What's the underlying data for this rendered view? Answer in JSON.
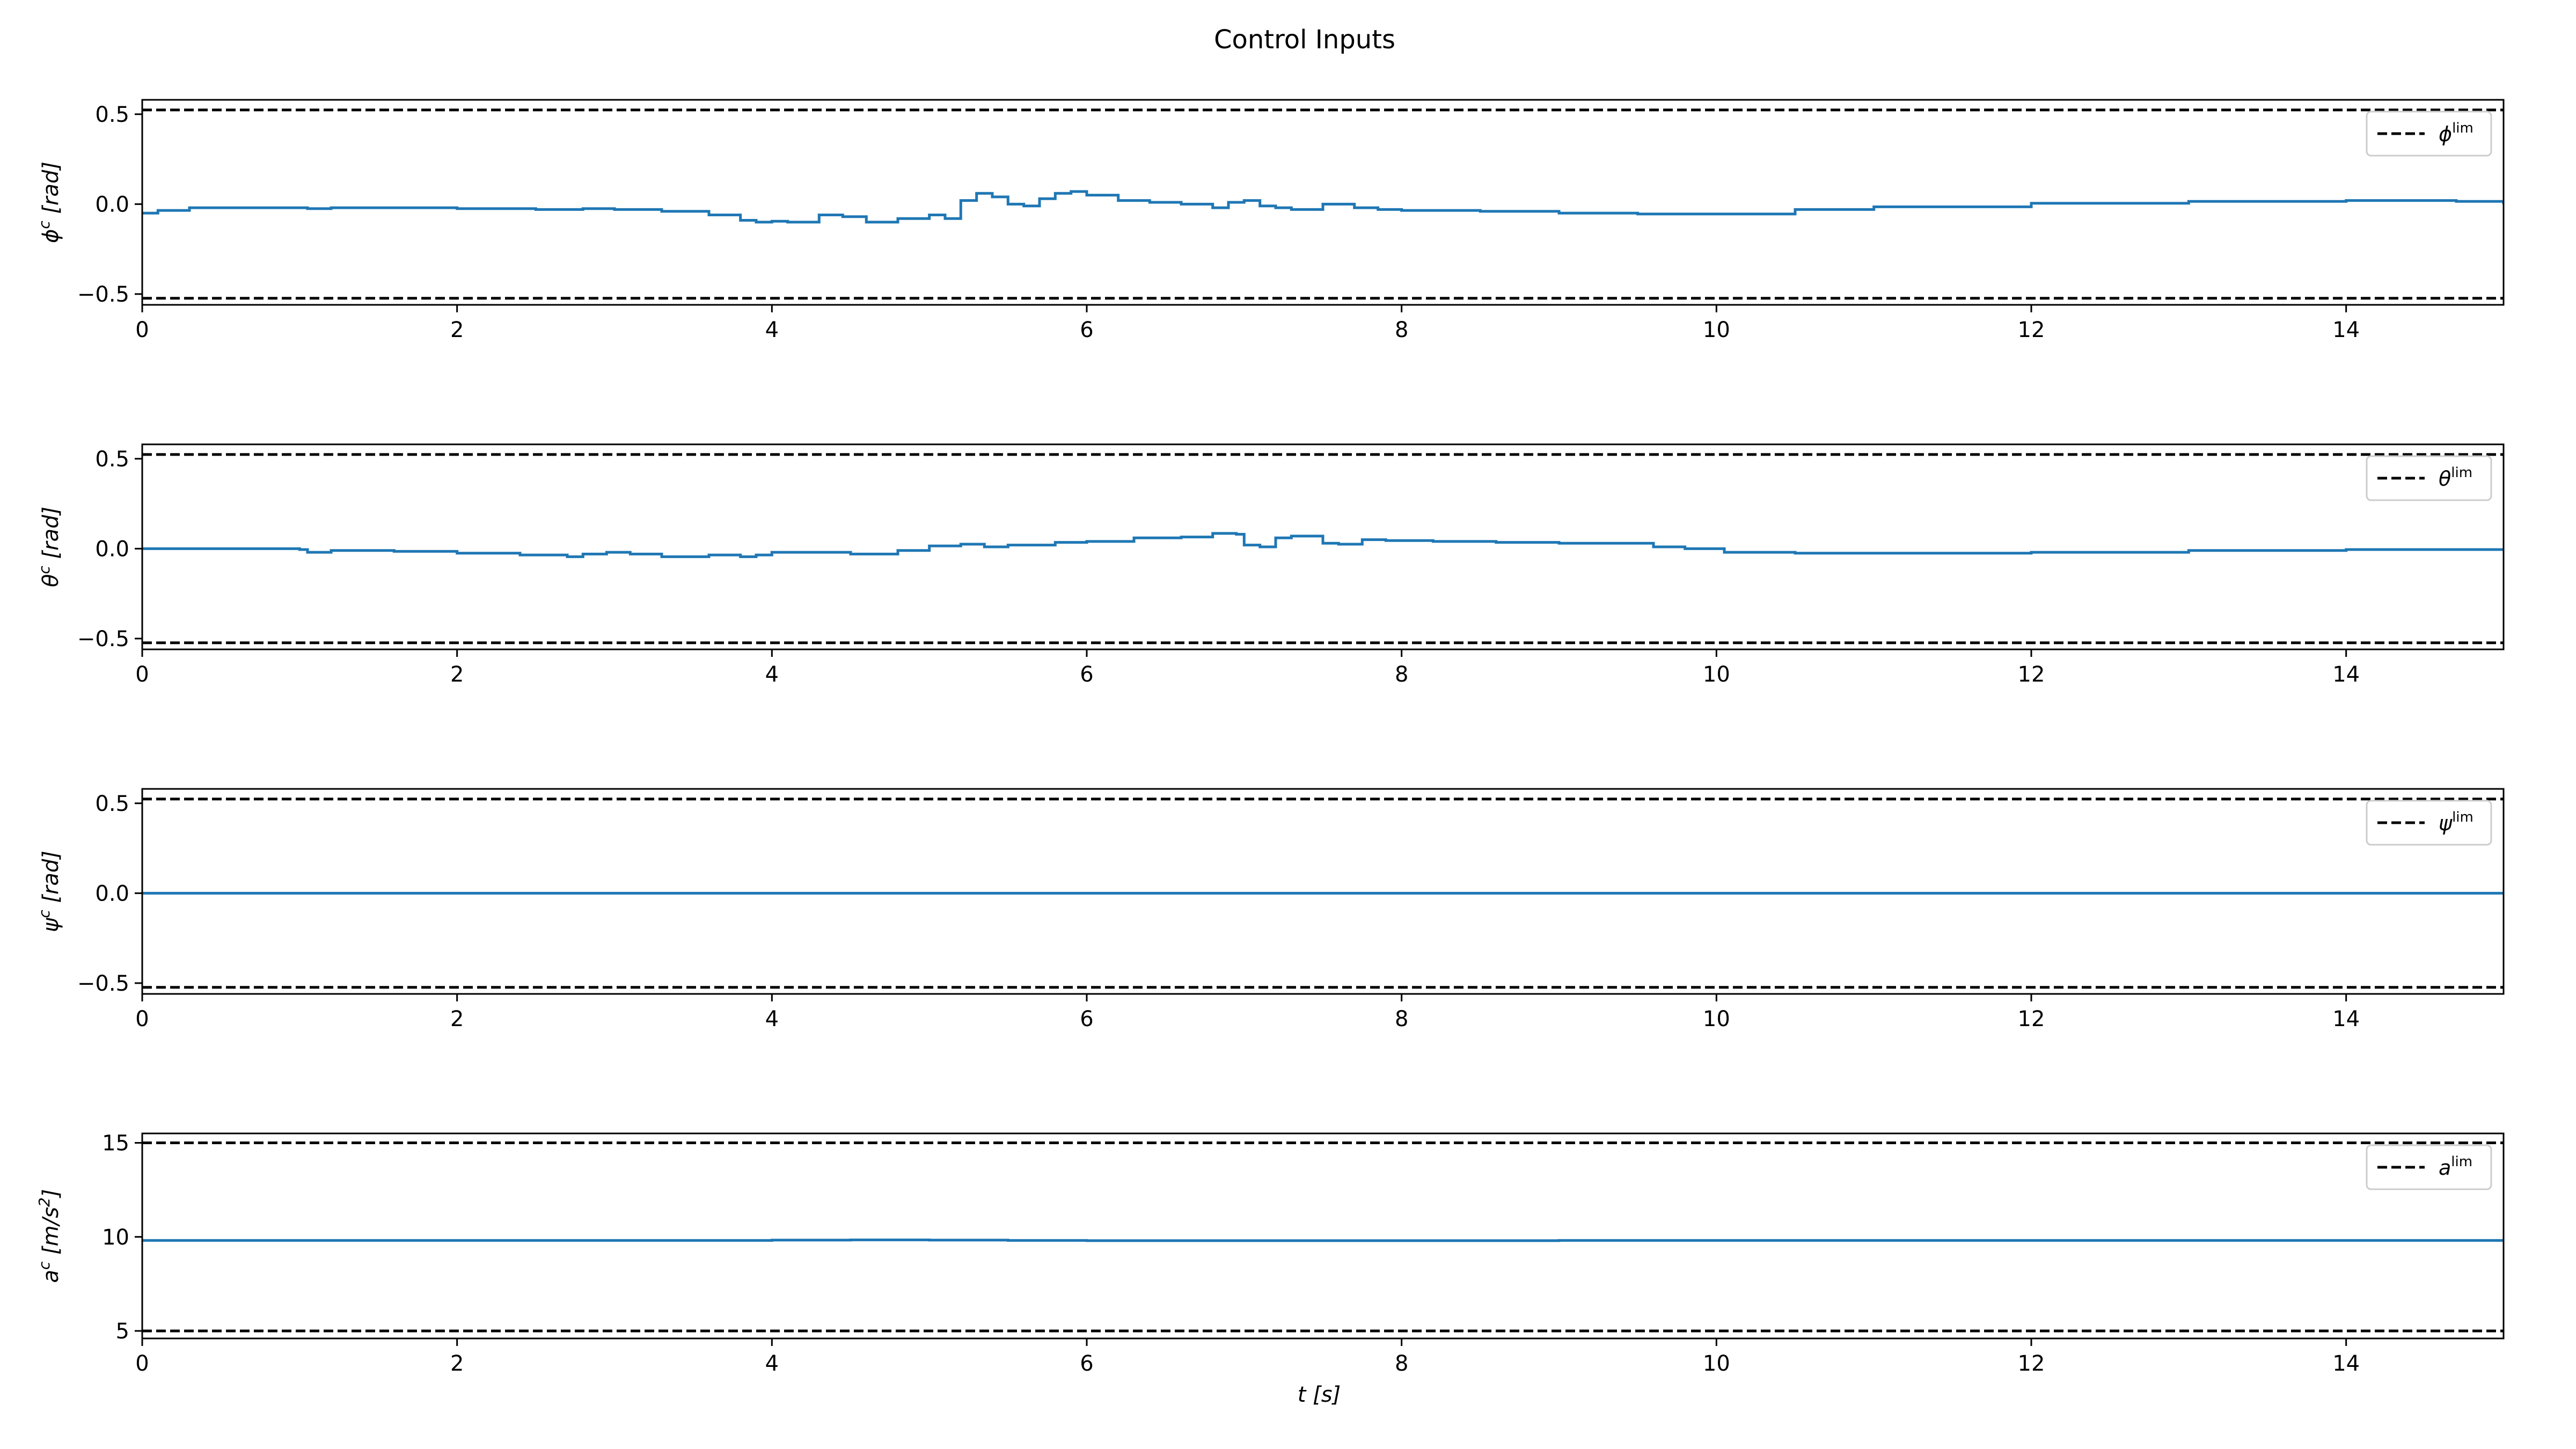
{
  "figure": {
    "title": "Control Inputs",
    "xlabel": "t [s]"
  },
  "chart_data": [
    {
      "type": "line",
      "ylabel": "ϕc [rad]",
      "xlim": [
        0,
        15
      ],
      "ylim": [
        -0.56,
        0.58
      ],
      "xticks": [
        0,
        2,
        4,
        6,
        8,
        10,
        12,
        14
      ],
      "yticks": [
        -0.5,
        0.0,
        0.5
      ],
      "ytick_labels": [
        "−0.5",
        "0.0",
        "0.5"
      ],
      "limits": [
        -0.5236,
        0.5236
      ],
      "legend": "ϕlim",
      "legend_position": "upper right",
      "series": [
        {
          "x": [
            0,
            0.1,
            0.3,
            0.6,
            1.0,
            1.05,
            1.2,
            1.6,
            2.0,
            2.5,
            2.8,
            3.0,
            3.3,
            3.6,
            3.8,
            3.9,
            4.0,
            4.1,
            4.3,
            4.45,
            4.6,
            4.8,
            5.0,
            5.1,
            5.2,
            5.3,
            5.4,
            5.5,
            5.6,
            5.7,
            5.8,
            5.9,
            6.0,
            6.2,
            6.4,
            6.6,
            6.8,
            6.9,
            7.0,
            7.1,
            7.2,
            7.3,
            7.5,
            7.7,
            7.85,
            8.0,
            8.5,
            9.0,
            9.5,
            9.9,
            10.5,
            11.0,
            12.0,
            13.0,
            14.0,
            14.5,
            14.7,
            15.0
          ],
          "y": [
            -0.05,
            -0.035,
            -0.02,
            -0.02,
            -0.02,
            -0.025,
            -0.02,
            -0.02,
            -0.025,
            -0.03,
            -0.025,
            -0.03,
            -0.04,
            -0.06,
            -0.09,
            -0.1,
            -0.095,
            -0.1,
            -0.06,
            -0.07,
            -0.1,
            -0.08,
            -0.06,
            -0.08,
            0.02,
            0.06,
            0.04,
            0.0,
            -0.01,
            0.03,
            0.06,
            0.07,
            0.05,
            0.02,
            0.01,
            0.0,
            -0.02,
            0.01,
            0.02,
            -0.01,
            -0.02,
            -0.03,
            0.0,
            -0.02,
            -0.03,
            -0.035,
            -0.04,
            -0.05,
            -0.055,
            -0.055,
            -0.03,
            -0.015,
            0.005,
            0.015,
            0.02,
            0.02,
            0.015,
            0.0
          ]
        }
      ]
    },
    {
      "type": "line",
      "ylabel": "θc [rad]",
      "xlim": [
        0,
        15
      ],
      "ylim": [
        -0.56,
        0.58
      ],
      "xticks": [
        0,
        2,
        4,
        6,
        8,
        10,
        12,
        14
      ],
      "yticks": [
        -0.5,
        0.0,
        0.5
      ],
      "ytick_labels": [
        "−0.5",
        "0.0",
        "0.5"
      ],
      "limits": [
        -0.5236,
        0.5236
      ],
      "legend": "θlim",
      "legend_position": "upper right",
      "series": [
        {
          "x": [
            0,
            0.5,
            1.0,
            1.05,
            1.2,
            1.6,
            2.0,
            2.4,
            2.7,
            2.8,
            2.95,
            3.1,
            3.3,
            3.6,
            3.8,
            3.9,
            4.0,
            4.2,
            4.5,
            4.8,
            5.0,
            5.2,
            5.35,
            5.5,
            5.8,
            6.0,
            6.3,
            6.6,
            6.8,
            6.95,
            7.0,
            7.1,
            7.2,
            7.3,
            7.5,
            7.6,
            7.75,
            7.9,
            8.2,
            8.6,
            9.0,
            9.6,
            9.8,
            10.05,
            10.5,
            11.0,
            12.0,
            13.0,
            14.0,
            15.0
          ],
          "y": [
            0.0,
            0.0,
            -0.005,
            -0.02,
            -0.01,
            -0.015,
            -0.025,
            -0.035,
            -0.045,
            -0.03,
            -0.02,
            -0.03,
            -0.045,
            -0.035,
            -0.045,
            -0.035,
            -0.02,
            -0.02,
            -0.03,
            -0.01,
            0.015,
            0.025,
            0.01,
            0.02,
            0.035,
            0.04,
            0.06,
            0.065,
            0.085,
            0.08,
            0.02,
            0.01,
            0.06,
            0.07,
            0.03,
            0.025,
            0.05,
            0.045,
            0.04,
            0.035,
            0.03,
            0.01,
            0.0,
            -0.02,
            -0.025,
            -0.025,
            -0.02,
            -0.01,
            -0.005,
            0.0
          ]
        }
      ]
    },
    {
      "type": "line",
      "ylabel": "ψc [rad]",
      "xlim": [
        0,
        15
      ],
      "ylim": [
        -0.56,
        0.58
      ],
      "xticks": [
        0,
        2,
        4,
        6,
        8,
        10,
        12,
        14
      ],
      "yticks": [
        -0.5,
        0.0,
        0.5
      ],
      "ytick_labels": [
        "−0.5",
        "0.0",
        "0.5"
      ],
      "limits": [
        -0.5236,
        0.5236
      ],
      "legend": "ψlim",
      "legend_position": "upper right",
      "series": [
        {
          "x": [
            0,
            15
          ],
          "y": [
            0.0,
            0.0
          ]
        }
      ]
    },
    {
      "type": "line",
      "ylabel": "ac [m/s2]",
      "xlim": [
        0,
        15
      ],
      "ylim": [
        4.6,
        15.5
      ],
      "xticks": [
        0,
        2,
        4,
        6,
        8,
        10,
        12,
        14
      ],
      "yticks": [
        5,
        10,
        15
      ],
      "ytick_labels": [
        "5",
        "10",
        "15"
      ],
      "limits": [
        5,
        15
      ],
      "legend": "alim",
      "legend_position": "upper right",
      "series": [
        {
          "x": [
            0,
            3.5,
            4.0,
            4.5,
            5.0,
            5.5,
            6.0,
            9.0,
            10.0,
            15.0
          ],
          "y": [
            9.81,
            9.81,
            9.83,
            9.84,
            9.83,
            9.81,
            9.8,
            9.81,
            9.81,
            9.81
          ]
        }
      ]
    }
  ]
}
